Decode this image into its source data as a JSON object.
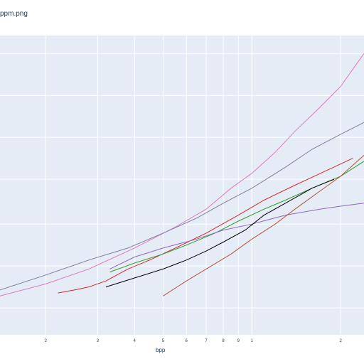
{
  "chart_data": {
    "type": "line",
    "title": "ppm.png",
    "xlabel": "bpp",
    "ylabel": "",
    "x_scale": "log",
    "grid": true,
    "legend": "none",
    "x_tick_labels": [
      {
        "value": 0.2,
        "label": "2"
      },
      {
        "value": 0.3,
        "label": "3"
      },
      {
        "value": 0.4,
        "label": "4"
      },
      {
        "value": 0.5,
        "label": "5"
      },
      {
        "value": 0.6,
        "label": "6"
      },
      {
        "value": 0.7,
        "label": "7"
      },
      {
        "value": 0.8,
        "label": "8"
      },
      {
        "value": 0.9,
        "label": "9"
      },
      {
        "value": 1,
        "label": "1"
      },
      {
        "value": 2,
        "label": "2"
      }
    ],
    "xlim": [
      0.14,
      2.4
    ],
    "ylim": [
      0,
      100
    ],
    "y_gridlines": [
      9,
      23,
      37,
      52,
      66,
      80,
      94
    ],
    "series": [
      {
        "color": "#e377c2",
        "x": [
          0.14,
          0.2,
          0.28,
          0.4,
          0.55,
          0.7,
          0.85,
          1.0,
          1.2,
          1.4,
          1.7,
          2.0,
          2.4
        ],
        "y": [
          13,
          17,
          22,
          29,
          36,
          42,
          49,
          54,
          61,
          68,
          76,
          83,
          94
        ]
      },
      {
        "color": "#7f7f9f",
        "x": [
          0.14,
          0.2,
          0.28,
          0.38,
          0.5,
          0.65,
          0.8,
          1.0,
          1.3,
          1.6,
          2.0,
          2.4
        ],
        "y": [
          15,
          20,
          25,
          29,
          34,
          39,
          44,
          49,
          56,
          62,
          67,
          71
        ]
      },
      {
        "color": "#d62728",
        "x": [
          0.22,
          0.25,
          0.28,
          0.32,
          0.38,
          0.45,
          0.55,
          0.7,
          0.9,
          1.1,
          1.4,
          1.8,
          2.2
        ],
        "y": [
          14,
          15,
          16,
          18,
          22,
          25,
          29,
          34,
          40,
          45,
          50,
          55,
          59
        ]
      },
      {
        "color": "#2ca02c",
        "x": [
          0.33,
          0.4,
          0.5,
          0.6,
          0.75,
          0.9,
          1.1,
          1.3,
          1.6,
          2.0,
          2.4
        ],
        "y": [
          21,
          24,
          27,
          30,
          34,
          38,
          42,
          45,
          49,
          53,
          58
        ]
      },
      {
        "color": "#9467bd",
        "x": [
          0.33,
          0.4,
          0.5,
          0.65,
          0.8,
          1.0,
          1.3,
          1.7,
          2.0,
          2.4
        ],
        "y": [
          22,
          26,
          29,
          32,
          35,
          37,
          40,
          42,
          43,
          44
        ]
      },
      {
        "color": "#000000",
        "x": [
          0.32,
          0.4,
          0.5,
          0.6,
          0.7,
          0.8,
          0.95,
          1.1,
          1.3,
          1.6,
          1.9
        ],
        "y": [
          16,
          19,
          22,
          25,
          28,
          31,
          35,
          40,
          44,
          49,
          52
        ]
      },
      {
        "color": "#b5533c",
        "x": [
          0.5,
          0.6,
          0.7,
          0.85,
          1.0,
          1.2,
          1.4,
          1.7,
          2.0,
          2.4
        ],
        "y": [
          13,
          18,
          22,
          27,
          32,
          37,
          42,
          48,
          53,
          60
        ]
      }
    ]
  }
}
